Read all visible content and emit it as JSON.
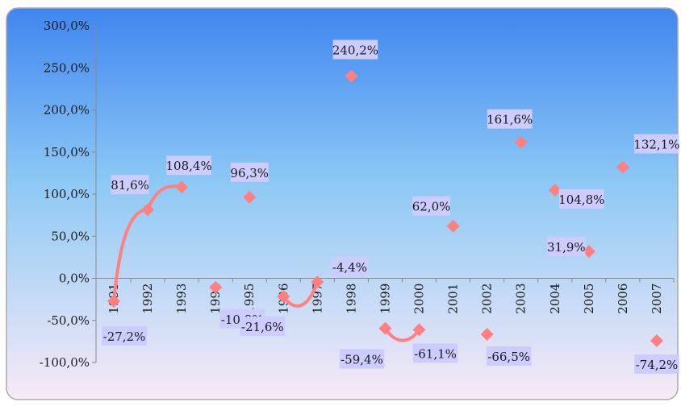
{
  "chart_data": {
    "type": "scatter",
    "title": "",
    "xlabel": "",
    "ylabel": "",
    "ylim": [
      -100,
      300
    ],
    "yticks": [
      -100,
      -50,
      0,
      50,
      100,
      150,
      200,
      250,
      300
    ],
    "ytick_labels": [
      "-100,0%",
      "-50,0%",
      "0,0%",
      "50,0%",
      "100,0%",
      "150,0%",
      "200,0%",
      "250,0%",
      "300,0%"
    ],
    "grid": false,
    "legend": "none",
    "categories": [
      "1991",
      "1992",
      "1993",
      "1994",
      "1995",
      "1996",
      "1997",
      "1998",
      "1999",
      "2000",
      "2001",
      "2002",
      "2003",
      "2004",
      "2005",
      "2006",
      "2007"
    ],
    "values": [
      -27.2,
      81.6,
      108.4,
      -10.8,
      96.3,
      -21.6,
      -4.4,
      240.2,
      -59.4,
      -61.1,
      62.0,
      -66.5,
      161.6,
      104.8,
      31.9,
      132.1,
      -74.2
    ],
    "labels": [
      "-27,2%",
      "81,6%",
      "108,4%",
      "-10,8%",
      "96,3%",
      "-21,6%",
      "-4,4%",
      "240,2%",
      "-59,4%",
      "-61,1%",
      "62,0%",
      "-66,5%",
      "161,6%",
      "104,8%",
      "31,9%",
      "132,1%",
      "-74,2%"
    ],
    "curves": [
      {
        "from": 0,
        "to": 2
      },
      {
        "from": 5,
        "to": 6
      },
      {
        "from": 8,
        "to": 9
      }
    ],
    "colors": {
      "marker": "#ff8080",
      "label_bg": "#ccccff",
      "bg_top": "#3f86f0",
      "bg_mid": "#8ec9f5",
      "bg_bottom": "#f8eaf6",
      "frame": "#a9a9a9"
    }
  }
}
